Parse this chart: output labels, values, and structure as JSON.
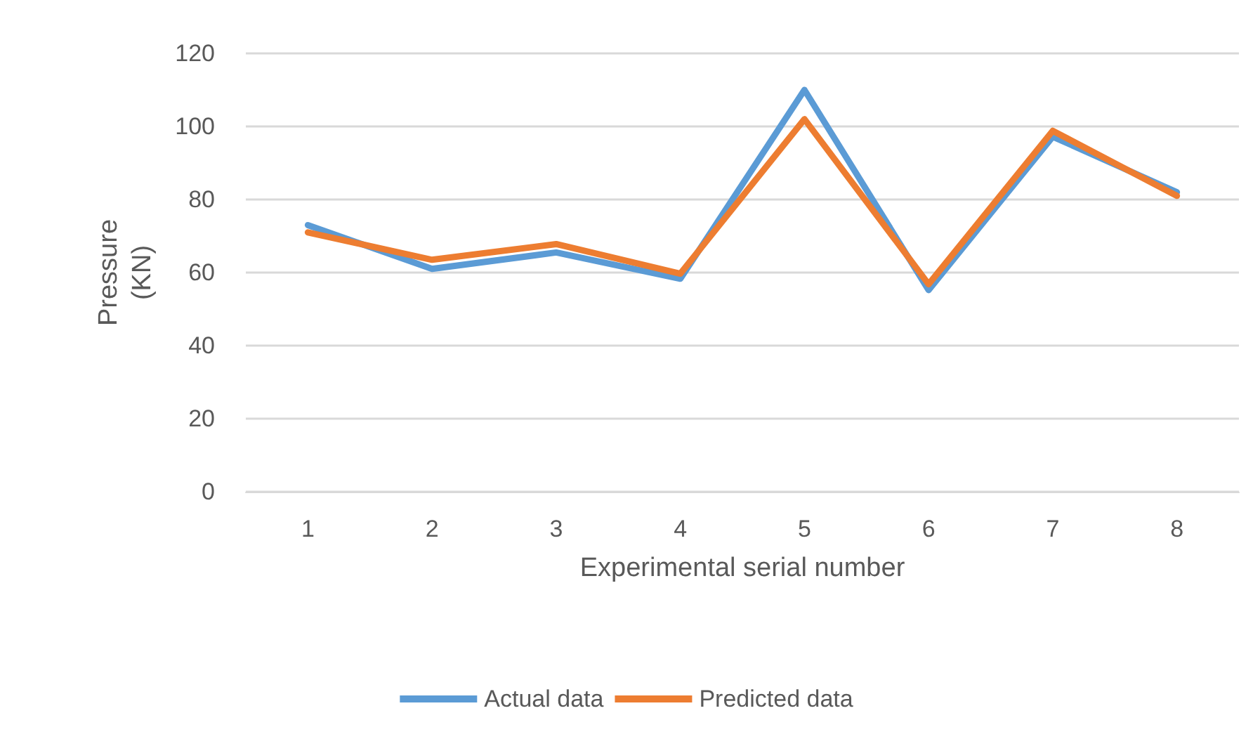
{
  "chart_data": {
    "type": "line",
    "xlabel": "Experimental serial number",
    "ylabel": "Pressure\n(KN)",
    "categories": [
      "1",
      "2",
      "3",
      "4",
      "5",
      "6",
      "7",
      "8"
    ],
    "series": [
      {
        "name": "Actual data",
        "color": "#5b9bd5",
        "values": [
          73,
          61,
          65.5,
          58.3,
          110,
          55.2,
          97.2,
          82
        ]
      },
      {
        "name": "Predicted data",
        "color": "#ed7d31",
        "values": [
          71,
          63.5,
          67.8,
          59.7,
          102,
          56.8,
          98.8,
          81
        ]
      }
    ],
    "ylim": [
      0,
      120
    ],
    "yticks": [
      0,
      20,
      40,
      60,
      80,
      100,
      120
    ],
    "grid": "y",
    "legend": "bottom",
    "marker": "none",
    "line_style": "solid"
  }
}
